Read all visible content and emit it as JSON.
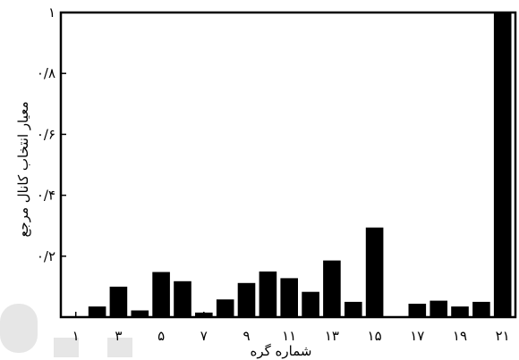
{
  "chart_data": {
    "type": "bar",
    "xlabel": "شماره گره",
    "ylabel": "معیار انتخاب کانال مرجع",
    "ylim": [
      0,
      1
    ],
    "xlim": [
      0.3,
      21.6
    ],
    "x_ticks": [
      1,
      3,
      5,
      7,
      9,
      11,
      13,
      15,
      17,
      19,
      21
    ],
    "x_tick_labels": [
      "۱",
      "۳",
      "۵",
      "۷",
      "۹",
      "۱۱",
      "۱۳",
      "۱۵",
      "۱۷",
      "۱۹",
      "۲۱"
    ],
    "y_ticks": [
      0.2,
      0.4,
      0.6,
      0.8,
      1.0
    ],
    "y_tick_labels": [
      "۰/۲",
      "۰/۴",
      "۰/۶",
      "۰/۸",
      "۱"
    ],
    "categories": [
      1,
      2,
      3,
      4,
      5,
      6,
      7,
      8,
      9,
      10,
      11,
      12,
      13,
      14,
      15,
      16,
      17,
      18,
      19,
      20,
      21
    ],
    "values": [
      0.0,
      0.035,
      0.1,
      0.022,
      0.148,
      0.118,
      0.015,
      0.058,
      0.112,
      0.15,
      0.128,
      0.083,
      0.186,
      0.05,
      0.294,
      0.0,
      0.044,
      0.054,
      0.035,
      0.05,
      1.0
    ],
    "grid": false
  }
}
